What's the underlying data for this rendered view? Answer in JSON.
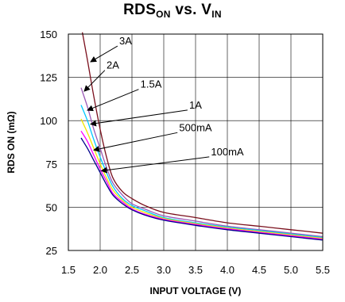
{
  "title": {
    "main": "RDS",
    "sub1": "ON",
    "mid": " vs. V",
    "sub2": "IN"
  },
  "chart_data": {
    "type": "line",
    "title": "RDSON vs. VIN",
    "xlabel": "INPUT VOLTAGE (V)",
    "ylabel": "RDS ON (mΩ)",
    "xlim": [
      1.5,
      5.5
    ],
    "ylim": [
      25,
      150
    ],
    "xticks": [
      "1.5",
      "2.0",
      "2.5",
      "3.0",
      "3.5",
      "4.0",
      "4.5",
      "5.0",
      "5.5"
    ],
    "yticks": [
      "25",
      "50",
      "75",
      "100",
      "125",
      "150"
    ],
    "grid": true,
    "series": [
      {
        "name": "3A",
        "color": "#7a0f1c",
        "x": [
          1.72,
          1.8,
          1.9,
          2.0,
          2.1,
          2.2,
          2.35,
          2.5,
          2.7,
          3.0,
          3.5,
          4.0,
          4.5,
          5.0,
          5.5
        ],
        "y": [
          151,
          135,
          114,
          95,
          79,
          67,
          59,
          55,
          51,
          47,
          44,
          41,
          39,
          37,
          35
        ]
      },
      {
        "name": "2A",
        "color": "#9b59b6",
        "x": [
          1.7,
          1.8,
          1.9,
          2.0,
          2.1,
          2.2,
          2.35,
          2.5,
          2.7,
          3.0,
          3.5,
          4.0,
          4.5,
          5.0,
          5.5
        ],
        "y": [
          119,
          108,
          95,
          84,
          73,
          64,
          57,
          52,
          49,
          45,
          42,
          39,
          37,
          35,
          33
        ]
      },
      {
        "name": "1.5A",
        "color": "#00c8ff",
        "x": [
          1.7,
          1.8,
          1.9,
          2.0,
          2.1,
          2.2,
          2.35,
          2.5,
          2.7,
          3.0,
          3.5,
          4.0,
          4.5,
          5.0,
          5.5
        ],
        "y": [
          109,
          100,
          89,
          79,
          70,
          62,
          55,
          51,
          48,
          44,
          41,
          38.5,
          36.5,
          34.5,
          32.5
        ]
      },
      {
        "name": "1A",
        "color": "#f2e600",
        "x": [
          1.7,
          1.8,
          1.9,
          2.0,
          2.1,
          2.2,
          2.35,
          2.5,
          2.7,
          3.0,
          3.5,
          4.0,
          4.5,
          5.0,
          5.5
        ],
        "y": [
          101,
          93,
          84,
          75,
          67,
          60,
          54,
          50,
          47,
          43.5,
          40.5,
          38,
          36,
          34,
          32
        ]
      },
      {
        "name": "500mA",
        "color": "#ff00ff",
        "x": [
          1.7,
          1.8,
          1.9,
          2.0,
          2.1,
          2.2,
          2.35,
          2.5,
          2.7,
          3.0,
          3.5,
          4.0,
          4.5,
          5.0,
          5.5
        ],
        "y": [
          94,
          88,
          80,
          72,
          65,
          58,
          53,
          49,
          46,
          43,
          40,
          37.5,
          35.5,
          33.5,
          31.5
        ]
      },
      {
        "name": "100mA",
        "color": "#00008b",
        "x": [
          1.7,
          1.8,
          1.9,
          2.0,
          2.1,
          2.2,
          2.35,
          2.5,
          2.7,
          3.0,
          3.5,
          4.0,
          4.5,
          5.0,
          5.5
        ],
        "y": [
          90,
          84,
          77,
          70,
          63,
          57,
          52,
          48.5,
          45.5,
          42.5,
          39.5,
          37,
          35,
          33,
          31
        ]
      }
    ],
    "annotations": [
      {
        "label": "3A",
        "series": "3A",
        "label_at": [
          2.4,
          144
        ],
        "arrow_to": [
          1.85,
          134
        ]
      },
      {
        "label": "2A",
        "series": "2A",
        "label_at": [
          2.2,
          130
        ],
        "arrow_to": [
          1.75,
          117
        ]
      },
      {
        "label": "1.5A",
        "series": "1.5A",
        "label_at": [
          2.8,
          119
        ],
        "arrow_to": [
          1.8,
          106
        ]
      },
      {
        "label": "1A",
        "series": "1A",
        "label_at": [
          3.5,
          107
        ],
        "arrow_to": [
          1.85,
          98
        ]
      },
      {
        "label": "500mA",
        "series": "500mA",
        "label_at": [
          3.5,
          94
        ],
        "arrow_to": [
          1.9,
          83
        ]
      },
      {
        "label": "100mA",
        "series": "100mA",
        "label_at": [
          4.0,
          80
        ],
        "arrow_to": [
          2.02,
          71
        ]
      }
    ]
  }
}
